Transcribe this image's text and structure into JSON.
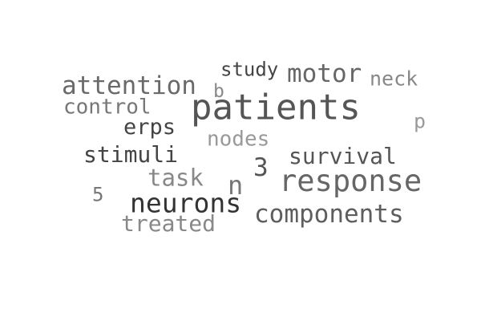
{
  "words": [
    {
      "text": "patients",
      "color": "#555555"
    },
    {
      "text": "response",
      "color": "#666666"
    },
    {
      "text": "neurons",
      "color": "#333333"
    },
    {
      "text": "components",
      "color": "#5e5e5e"
    },
    {
      "text": "attention",
      "color": "#6a6a6a"
    },
    {
      "text": "motor",
      "color": "#666666"
    },
    {
      "text": "survival",
      "color": "#555555"
    },
    {
      "text": "stimuli",
      "color": "#444444"
    },
    {
      "text": "task",
      "color": "#888888"
    },
    {
      "text": "n",
      "color": "#777777"
    },
    {
      "text": "3",
      "color": "#555555"
    },
    {
      "text": "control",
      "color": "#777777"
    },
    {
      "text": "erps",
      "color": "#444444"
    },
    {
      "text": "nodes",
      "color": "#999999"
    },
    {
      "text": "neck",
      "color": "#888888"
    },
    {
      "text": "study",
      "color": "#444444"
    },
    {
      "text": "b",
      "color": "#888888"
    },
    {
      "text": "p",
      "color": "#999999"
    },
    {
      "text": "5",
      "color": "#777777"
    },
    {
      "text": "treated",
      "color": "#888888"
    }
  ]
}
